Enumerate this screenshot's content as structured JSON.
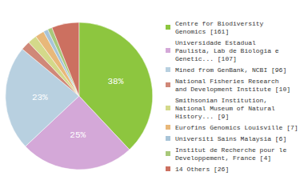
{
  "chart_data": {
    "type": "pie",
    "categories": [
      "Centre for Biodiversity\nGenomics [161]",
      "Universidade Estadual\nPaulista, Lab de Biologia e\nGenetic... [107]",
      "Mined from GenBank, NCBI [96]",
      "National Fisheries Research\nand Development Institute [10]",
      "Smithsonian Institution,\nNational Museum of Natural\nHistory... [9]",
      "Eurofins Genomics Louisville [7]",
      "Universiti Sains Malaysia [6]",
      "Institut de Recherche pour le\nDeveloppement, France [4]",
      "14 Others [26]"
    ],
    "values": [
      38,
      25,
      23,
      2,
      2,
      2,
      1,
      1,
      6
    ],
    "value_labels": [
      "38%",
      "25%",
      "23%",
      null,
      null,
      null,
      null,
      null,
      null
    ],
    "colors": [
      "#8dc63f",
      "#d4a8d8",
      "#b8d0e0",
      "#d08878",
      "#d4d98a",
      "#e8b87a",
      "#a8c4d8",
      "#a8c87a",
      "#cc7060"
    ],
    "data_labels": true,
    "legend": "right"
  }
}
